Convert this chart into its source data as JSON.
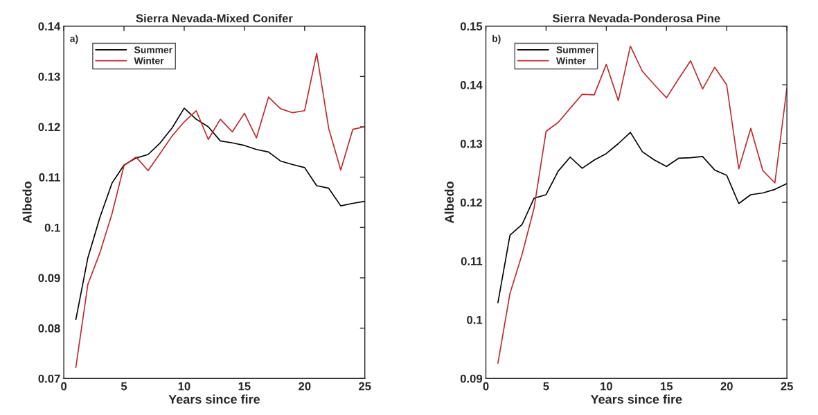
{
  "chart_data": [
    {
      "type": "line",
      "title": "Sierra Nevada-Mixed Conifer",
      "xlabel": "Years since fire",
      "ylabel": "Albedo",
      "annotations": [
        "a)"
      ],
      "x": [
        1,
        2,
        3,
        4,
        5,
        6,
        7,
        8,
        9,
        10,
        11,
        12,
        13,
        14,
        15,
        16,
        17,
        18,
        19,
        20,
        21,
        22,
        23,
        24,
        25
      ],
      "series": [
        {
          "name": "Summer",
          "color": "#000000",
          "values": [
            0.0817,
            0.094,
            0.102,
            0.1088,
            0.1124,
            0.1138,
            0.1145,
            0.1168,
            0.1198,
            0.1237,
            0.1215,
            0.12,
            0.1172,
            0.1168,
            0.1163,
            0.1155,
            0.115,
            0.1132,
            0.1125,
            0.1119,
            0.1083,
            0.1078,
            0.1043,
            0.1048,
            0.1052
          ]
        },
        {
          "name": "Winter",
          "color": "#c0282d",
          "values": [
            0.0722,
            0.0887,
            0.095,
            0.1027,
            0.1123,
            0.114,
            0.1113,
            0.1147,
            0.1182,
            0.121,
            0.1232,
            0.1175,
            0.1215,
            0.119,
            0.1227,
            0.1178,
            0.1259,
            0.1236,
            0.1228,
            0.1232,
            0.1346,
            0.1197,
            0.1114,
            0.1195,
            0.12
          ]
        }
      ],
      "xlim": [
        0,
        25
      ],
      "xticks": [
        0,
        5,
        10,
        15,
        20,
        25
      ],
      "ylim": [
        0.07,
        0.14
      ],
      "yticks": [
        0.07,
        0.08,
        0.09,
        0.1,
        0.11,
        0.12,
        0.13,
        0.14
      ],
      "grid": false,
      "legend": "top left"
    },
    {
      "type": "line",
      "title": "Sierra Nevada-Ponderosa Pine",
      "xlabel": "Years since fire",
      "ylabel": "Albedo",
      "annotations": [
        "b)"
      ],
      "x": [
        1,
        2,
        3,
        4,
        5,
        6,
        7,
        8,
        9,
        10,
        11,
        12,
        13,
        14,
        15,
        16,
        17,
        18,
        19,
        20,
        21,
        22,
        23,
        24,
        25
      ],
      "series": [
        {
          "name": "Summer",
          "color": "#000000",
          "values": [
            0.1029,
            0.1144,
            0.1162,
            0.1207,
            0.1213,
            0.1253,
            0.1277,
            0.1258,
            0.1272,
            0.1283,
            0.13,
            0.1319,
            0.1286,
            0.1272,
            0.1261,
            0.1275,
            0.1276,
            0.1278,
            0.1255,
            0.1246,
            0.1198,
            0.1213,
            0.1216,
            0.1222,
            0.1232
          ]
        },
        {
          "name": "Winter",
          "color": "#c0282d",
          "values": [
            0.0926,
            0.1045,
            0.1111,
            0.119,
            0.1321,
            0.1336,
            0.136,
            0.1384,
            0.1383,
            0.1435,
            0.1373,
            0.1466,
            0.1423,
            0.14,
            0.1378,
            0.141,
            0.1441,
            0.1393,
            0.143,
            0.14,
            0.1257,
            0.1326,
            0.1254,
            0.1233,
            0.1395
          ]
        }
      ],
      "xlim": [
        0,
        25
      ],
      "xticks": [
        0,
        5,
        10,
        15,
        20,
        25
      ],
      "ylim": [
        0.09,
        0.15
      ],
      "yticks": [
        0.09,
        0.1,
        0.11,
        0.12,
        0.13,
        0.14,
        0.15
      ],
      "grid": false,
      "legend": "top left"
    }
  ]
}
